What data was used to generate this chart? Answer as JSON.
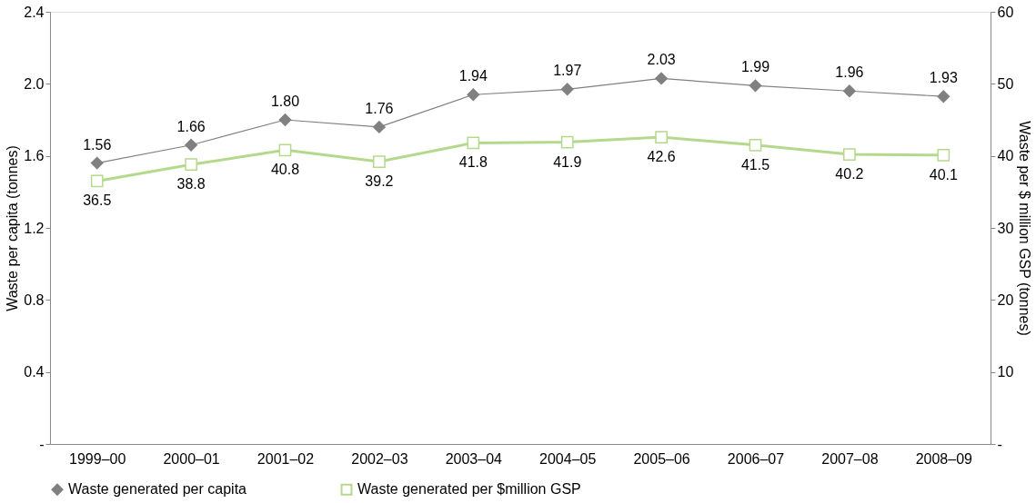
{
  "chart_data": {
    "type": "line",
    "categories": [
      "1999–00",
      "2000–01",
      "2001–02",
      "2002–03",
      "2003–04",
      "2004–05",
      "2005–06",
      "2006–07",
      "2007–08",
      "2008–09"
    ],
    "ylabel": "Waste per capita (tonnes)",
    "y2label": "Waste per $ million GSP (tonnes)",
    "ylim": [
      0,
      2.4
    ],
    "yticks": [
      {
        "value": 0,
        "label": "-"
      },
      0.4,
      0.8,
      1.2,
      1.6,
      {
        "value": 2,
        "label": "2.0"
      },
      2.4
    ],
    "y2lim": [
      0,
      60
    ],
    "y2ticks": [
      {
        "value": 0,
        "label": "-"
      },
      10,
      20,
      30,
      40,
      50,
      60
    ],
    "grid": false,
    "legend": "bottom",
    "series": [
      {
        "name": "Waste generated per capita",
        "color": "#808080",
        "marker": "diamond",
        "axis": "y",
        "values": [
          1.56,
          1.66,
          1.8,
          1.76,
          1.94,
          1.97,
          2.03,
          1.99,
          1.96,
          1.93
        ],
        "value_labels": [
          "1.56",
          "1.66",
          "1.80",
          "1.76",
          "1.94",
          "1.97",
          "2.03",
          "1.99",
          "1.96",
          "1.93"
        ]
      },
      {
        "name": "Waste generated per $million GSP",
        "color": "#b5d98c",
        "marker": "square",
        "axis": "y2",
        "values": [
          36.5,
          38.8,
          40.8,
          39.2,
          41.8,
          41.9,
          42.6,
          41.5,
          40.2,
          40.1
        ],
        "value_labels": [
          "36.5",
          "38.8",
          "40.8",
          "39.2",
          "41.8",
          "41.9",
          "42.6",
          "41.5",
          "40.2",
          "40.1"
        ]
      }
    ]
  }
}
